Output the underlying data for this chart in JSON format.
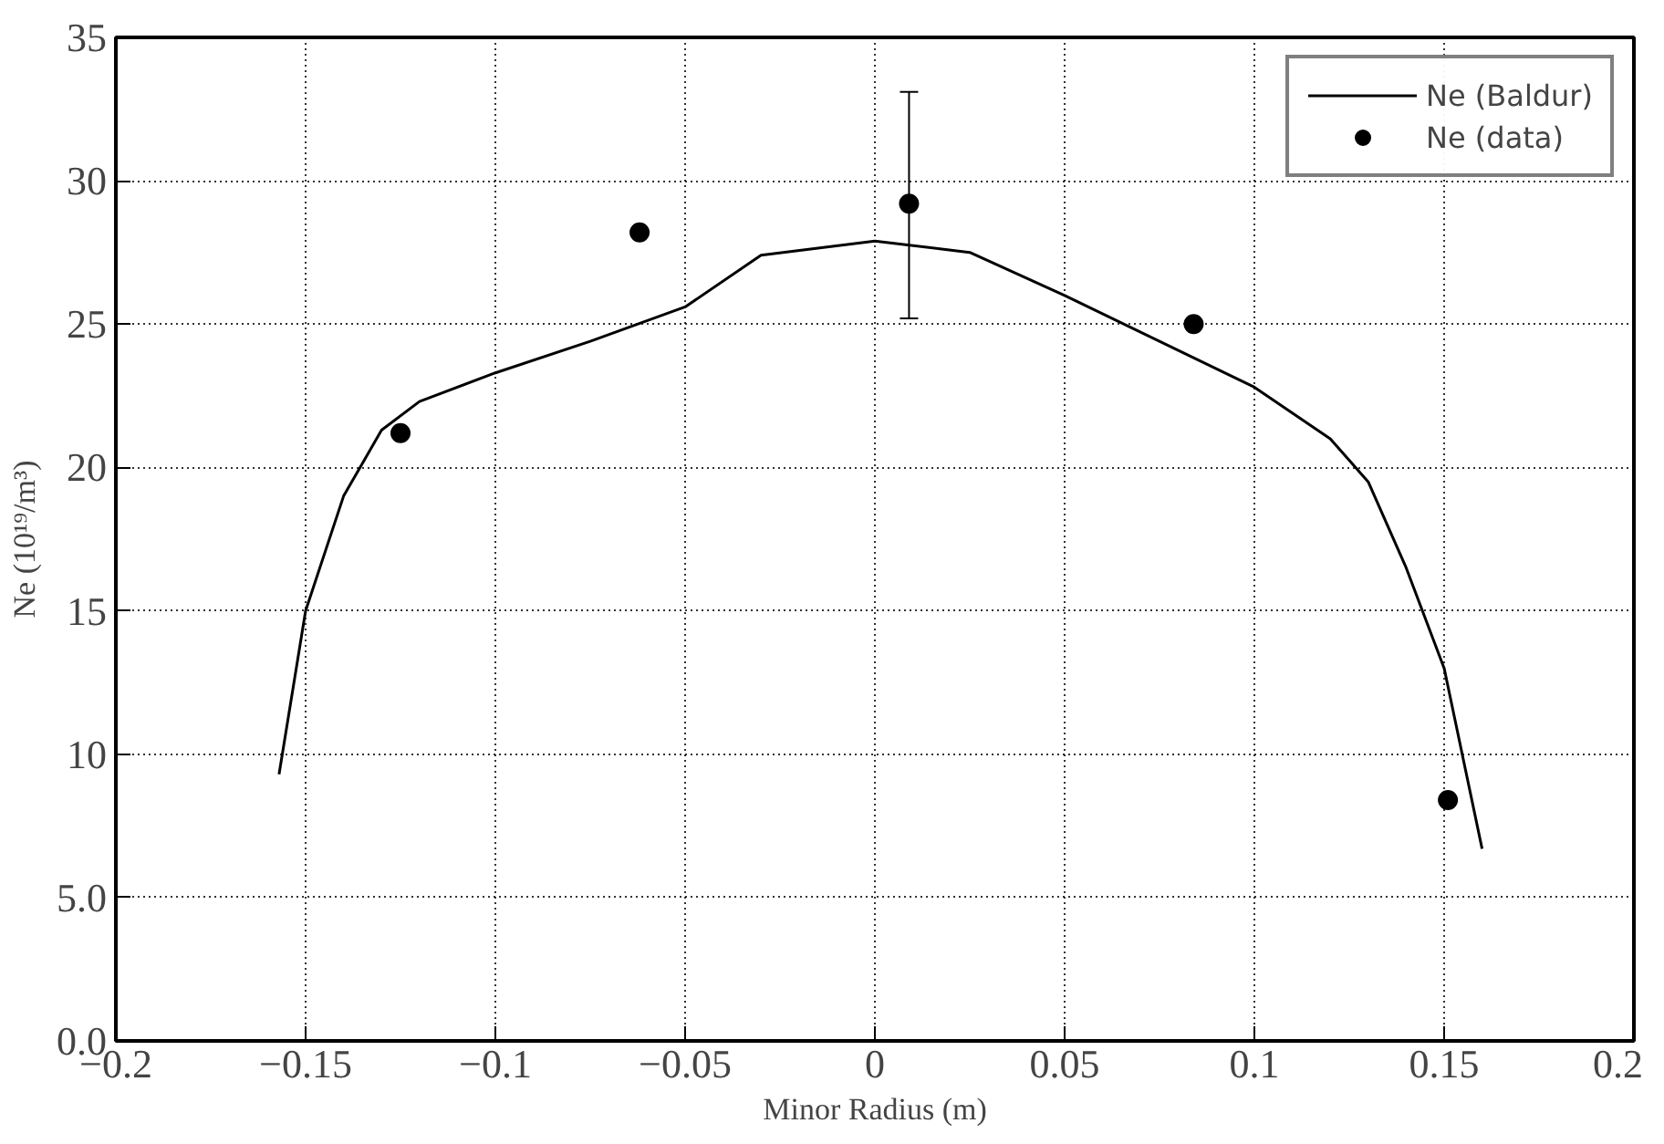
{
  "chart_data": {
    "type": "line",
    "xlabel": "Minor Radius (m)",
    "ylabel": "Ne (10¹⁹/m³)",
    "xlim": [
      -0.2,
      0.2
    ],
    "xticks": [
      -0.2,
      -0.15,
      -0.1,
      -0.05,
      0,
      0.05,
      0.1,
      0.15,
      0.2
    ],
    "ylim": [
      0,
      35
    ],
    "yticks": [
      {
        "value": 0,
        "label": "0.0"
      },
      {
        "value": 5,
        "label": "5.0"
      },
      10,
      15,
      20,
      25,
      30,
      35
    ],
    "grid": true,
    "legend": "top right",
    "series": [
      {
        "name": "Ne (Baldur)",
        "color": "#000000",
        "line_style": "solid",
        "marker": "none",
        "x": [
          -0.157,
          -0.15,
          -0.14,
          -0.13,
          -0.12,
          -0.1,
          -0.075,
          -0.05,
          -0.03,
          0,
          0.025,
          0.05,
          0.075,
          0.1,
          0.12,
          0.13,
          0.14,
          0.15,
          0.16
        ],
        "values": [
          9.3,
          15,
          19,
          21.3,
          22.3,
          23.3,
          24.4,
          25.6,
          27.4,
          27.9,
          27.5,
          26.0,
          24.4,
          22.8,
          21.0,
          19.5,
          16.5,
          13.0,
          6.7
        ]
      },
      {
        "name": "Ne (data)",
        "type": "scatter",
        "color": "#000000",
        "marker": "circle",
        "x": [
          -0.125,
          -0.062,
          0.009,
          0.084,
          0.151
        ],
        "values": [
          21.2,
          28.2,
          29.2,
          25.0,
          8.4
        ],
        "errors": [
          null,
          null,
          [
            25.2,
            33.1
          ],
          null,
          null
        ]
      }
    ]
  }
}
